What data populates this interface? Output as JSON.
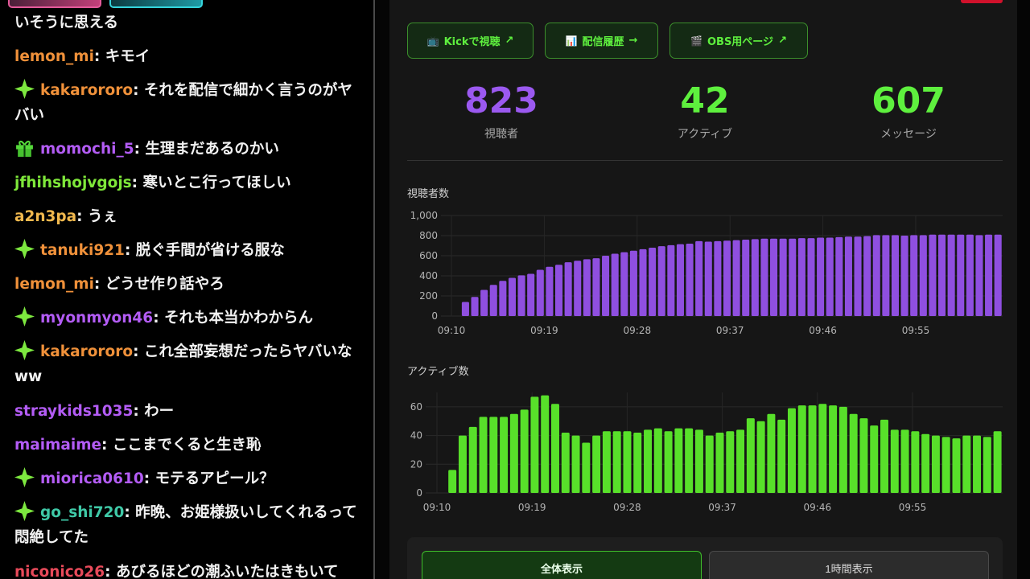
{
  "chat": {
    "messages": [
      {
        "badge": "",
        "user": "",
        "user_color": "#ffffff",
        "text": "いそうに思える"
      },
      {
        "badge": "",
        "user": "lemon_mi",
        "user_color": "#f0913a",
        "text": ": キモイ"
      },
      {
        "badge": "sparkle-icon",
        "user": "kakarororo",
        "user_color": "#f0913a",
        "text": ": それを配信で細かく言うのがヤバい"
      },
      {
        "badge": "gift-icon",
        "user": "momochi_5",
        "user_color": "#b35cf5",
        "text": ": 生理まだあるのかい"
      },
      {
        "badge": "",
        "user": "jfhihshojvgojs",
        "user_color": "#7fe83a",
        "text": ": 寒いとこ行ってほしい"
      },
      {
        "badge": "",
        "user": "a2n3pa",
        "user_color": "#f2b94e",
        "text": ": うぇ"
      },
      {
        "badge": "sparkle-icon",
        "user": "tanuki921",
        "user_color": "#f0913a",
        "text": ": 脱ぐ手間が省ける服な"
      },
      {
        "badge": "",
        "user": "lemon_mi",
        "user_color": "#f0913a",
        "text": ": どうせ作り話やろ"
      },
      {
        "badge": "sparkle-icon",
        "user": "myonmyon46",
        "user_color": "#b35cf5",
        "text": ": それも本当かわからん"
      },
      {
        "badge": "sparkle-icon",
        "user": "kakarororo",
        "user_color": "#f0913a",
        "text": ": これ全部妄想だったらヤバいなww"
      },
      {
        "badge": "",
        "user": "straykids1035",
        "user_color": "#b35cf5",
        "text": ": わー"
      },
      {
        "badge": "",
        "user": "maimaime",
        "user_color": "#b35cf5",
        "text": ": ここまでくると生き恥"
      },
      {
        "badge": "sparkle-icon",
        "user": "miorica0610",
        "user_color": "#b35cf5",
        "text": ": モテるアピール？"
      },
      {
        "badge": "sparkle-icon",
        "user": "go_shi720",
        "user_color": "#3fc9a7",
        "text": ": 昨晩、お姫様扱いしてくれるって悶絶してた"
      },
      {
        "badge": "",
        "user": "niconico26",
        "user_color": "#e84a5a",
        "text": ": あびるほどの潮ふいたはきもいて"
      }
    ]
  },
  "links": [
    {
      "icon": "📺",
      "label": "Kickで視聴",
      "arrow": "↗"
    },
    {
      "icon": "📊",
      "label": "配信履歴",
      "arrow": "→"
    },
    {
      "icon": "🎬",
      "label": "OBS用ページ",
      "arrow": "↗"
    }
  ],
  "stats": [
    {
      "value": "823",
      "label": "視聴者",
      "color": "#9b59f0"
    },
    {
      "value": "42",
      "label": "アクティブ",
      "color": "#5ef03e"
    },
    {
      "value": "607",
      "label": "メッセージ",
      "color": "#5ef03e"
    }
  ],
  "chart_data": [
    {
      "type": "bar",
      "title": "視聴者数",
      "color": "#8f4fe0",
      "ylim": [
        0,
        1000
      ],
      "yticks": [
        "0",
        "200",
        "400",
        "600",
        "800",
        "1,000"
      ],
      "xticks": [
        "09:10",
        "09:19",
        "09:28",
        "09:37",
        "09:46",
        "09:55"
      ],
      "values": [
        0,
        140,
        190,
        260,
        310,
        350,
        380,
        405,
        420,
        460,
        490,
        510,
        535,
        550,
        565,
        575,
        600,
        620,
        635,
        650,
        665,
        680,
        695,
        705,
        715,
        720,
        745,
        740,
        745,
        750,
        755,
        760,
        765,
        770,
        770,
        770,
        770,
        775,
        775,
        780,
        780,
        785,
        790,
        790,
        795,
        805,
        805,
        805,
        800,
        805,
        805,
        810,
        810,
        810,
        810,
        810,
        805,
        810,
        810
      ]
    },
    {
      "type": "bar",
      "title": "アクティブ数",
      "color": "#58e02a",
      "ylim": [
        0,
        70
      ],
      "yticks": [
        "0",
        "20",
        "40",
        "60"
      ],
      "xticks": [
        "09:10",
        "09:19",
        "09:28",
        "09:37",
        "09:46",
        "09:55"
      ],
      "values": [
        0,
        16,
        40,
        46,
        53,
        53,
        53,
        55,
        58,
        67,
        68,
        62,
        42,
        40,
        35,
        40,
        43,
        43,
        43,
        42,
        44,
        45,
        43,
        45,
        45,
        44,
        40,
        42,
        43,
        44,
        52,
        50,
        55,
        51,
        59,
        61,
        61,
        62,
        61,
        60,
        55,
        52,
        47,
        51,
        44,
        44,
        43,
        41,
        40,
        39,
        38,
        40,
        40,
        39,
        43
      ]
    }
  ],
  "toggle": {
    "all_label": "全体表示",
    "hour_label": "1時間表示"
  }
}
